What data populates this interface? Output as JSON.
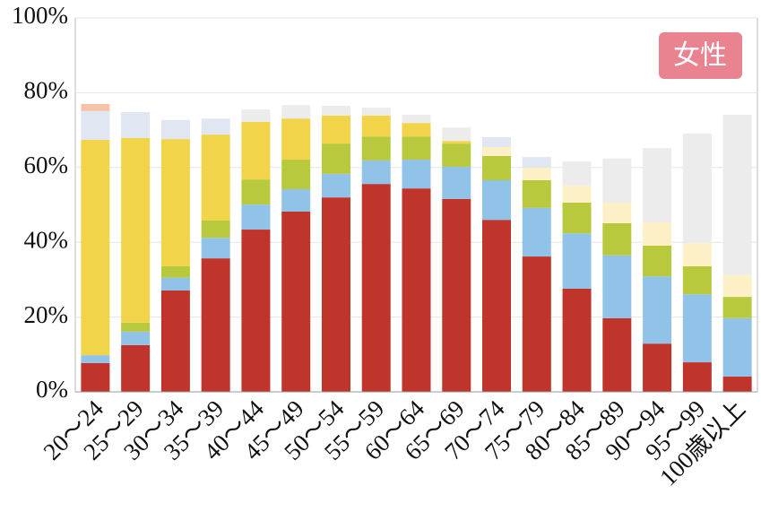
{
  "chart_data": {
    "type": "stacked_bar",
    "annotation": "女性",
    "categories": [
      "20～24",
      "25～29",
      "30～34",
      "35～39",
      "40～44",
      "45～49",
      "50～54",
      "55～59",
      "60～64",
      "65～69",
      "70～74",
      "75～79",
      "80～84",
      "85～89",
      "90～94",
      "95～99",
      "100歳以上"
    ],
    "series": [
      {
        "color": "#c0352b",
        "values": [
          7.7,
          12.5,
          27.1,
          35.7,
          43.4,
          48.2,
          52.0,
          55.6,
          54.4,
          51.6,
          46.0,
          36.2,
          27.6,
          19.7,
          12.9,
          7.9,
          4.1
        ]
      },
      {
        "color": "#91c3e8",
        "values": [
          2.1,
          3.6,
          3.4,
          5.5,
          6.7,
          6.0,
          6.3,
          6.3,
          7.7,
          8.6,
          10.6,
          13.0,
          14.8,
          16.8,
          18.0,
          18.2,
          15.6
        ]
      },
      {
        "color": "#b8c93d",
        "values": [
          0,
          2.4,
          3.1,
          4.6,
          6.7,
          7.9,
          8.1,
          6.4,
          6.2,
          6.2,
          6.5,
          7.4,
          8.2,
          8.6,
          8.2,
          7.5,
          5.7
        ]
      },
      {
        "color": "#f2d44a",
        "values": [
          57.6,
          49.4,
          34.0,
          23.0,
          15.4,
          11.0,
          7.5,
          5.6,
          3.6,
          0.7,
          0,
          0,
          0,
          0,
          0,
          0,
          0
        ]
      },
      {
        "color": "#fdf0c6",
        "values": [
          0,
          0,
          0,
          0,
          0,
          0,
          0,
          0,
          0,
          0,
          2.4,
          3.4,
          4.6,
          5.5,
          6.2,
          6.2,
          5.8
        ]
      },
      {
        "color": "#ececec",
        "values": [
          0,
          0,
          0,
          0,
          3.3,
          3.6,
          2.6,
          2.1,
          2.2,
          3.6,
          0,
          0,
          6.4,
          11.8,
          19.9,
          29.3,
          42.9
        ]
      },
      {
        "color": "#e0e6f2",
        "values": [
          7.7,
          6.9,
          5.1,
          4.3,
          0,
          0,
          0,
          0,
          0,
          0,
          2.6,
          2.8,
          0,
          0,
          0,
          0,
          0
        ]
      },
      {
        "color": "#f6c3a6",
        "values": [
          1.9,
          0,
          0,
          0,
          0,
          0,
          0,
          0,
          0,
          0,
          0,
          0,
          0,
          0,
          0,
          0,
          0
        ]
      }
    ],
    "ylim": [
      0,
      100
    ],
    "yticks": [
      {
        "value": 0,
        "label": "0%"
      },
      {
        "value": 20,
        "label": "20%"
      },
      {
        "value": 40,
        "label": "40%"
      },
      {
        "value": 60,
        "label": "60%"
      },
      {
        "value": 80,
        "label": "80%"
      },
      {
        "value": 100,
        "label": "100%"
      }
    ],
    "grid": true
  }
}
